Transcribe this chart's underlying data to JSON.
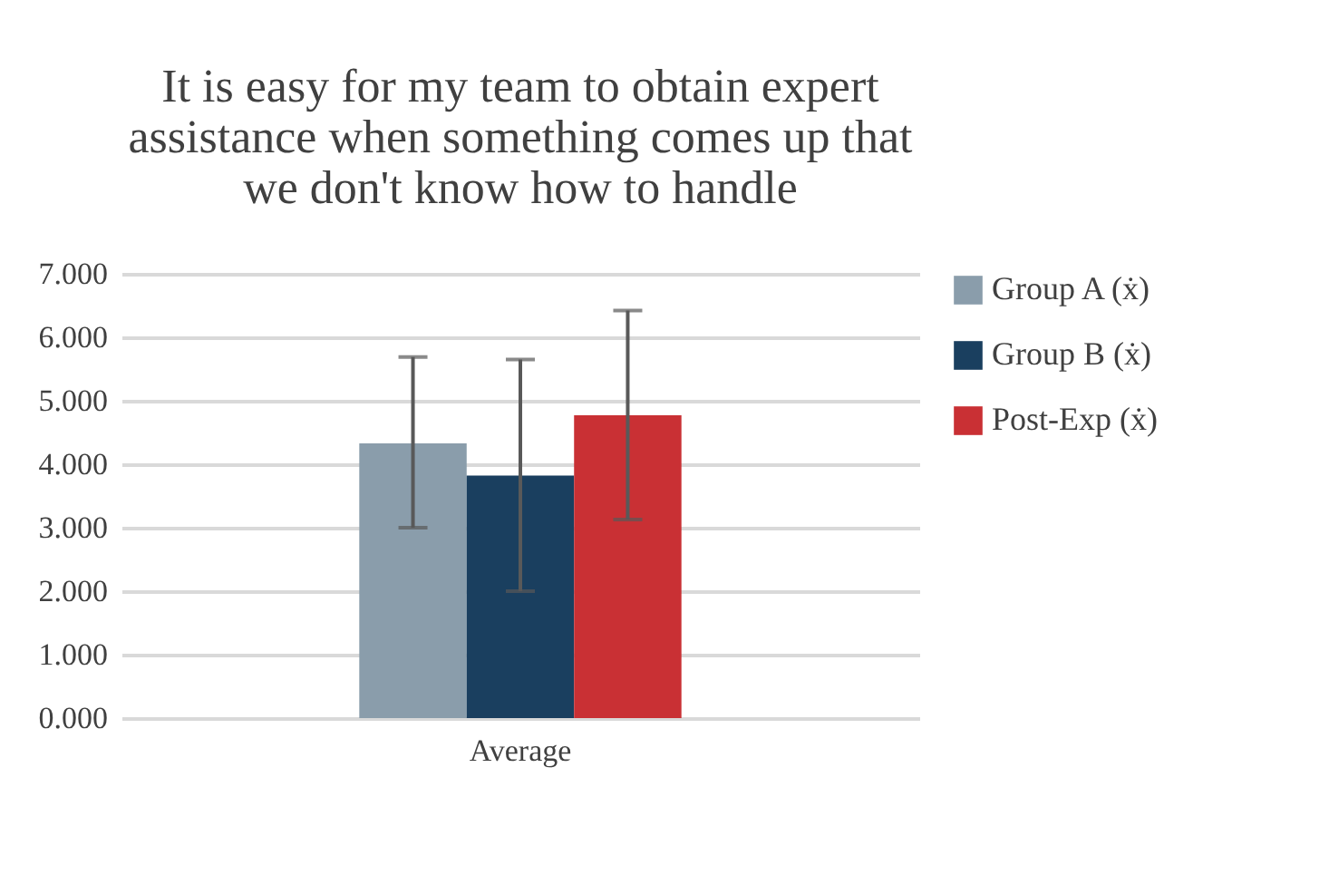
{
  "chart_data": {
    "type": "bar",
    "title": "It is easy for my team to obtain expert assistance when something comes up that we don't know how to handle",
    "categories": [
      "Average"
    ],
    "series": [
      {
        "name": "Group A (ẋ)",
        "color": "#8a9dab",
        "values": [
          4.33
        ],
        "errors": [
          [
            3.0,
            5.69
          ]
        ]
      },
      {
        "name": "Group B (ẋ)",
        "color": "#1a3f5f",
        "values": [
          3.82
        ],
        "errors": [
          [
            2.0,
            5.65
          ]
        ]
      },
      {
        "name": "Post-Exp (ẋ)",
        "color": "#c93034",
        "values": [
          4.77
        ],
        "errors": [
          [
            3.13,
            6.42
          ]
        ]
      }
    ],
    "ylim": [
      0,
      7
    ],
    "yticks": [
      {
        "value": 0,
        "label": "0.000"
      },
      {
        "value": 1,
        "label": "1.000"
      },
      {
        "value": 2,
        "label": "2.000"
      },
      {
        "value": 3,
        "label": "3.000"
      },
      {
        "value": 4,
        "label": "4.000"
      },
      {
        "value": 5,
        "label": "5.000"
      },
      {
        "value": 6,
        "label": "6.000"
      },
      {
        "value": 7,
        "label": "7.000"
      }
    ],
    "grid": "y",
    "legend": "right"
  }
}
